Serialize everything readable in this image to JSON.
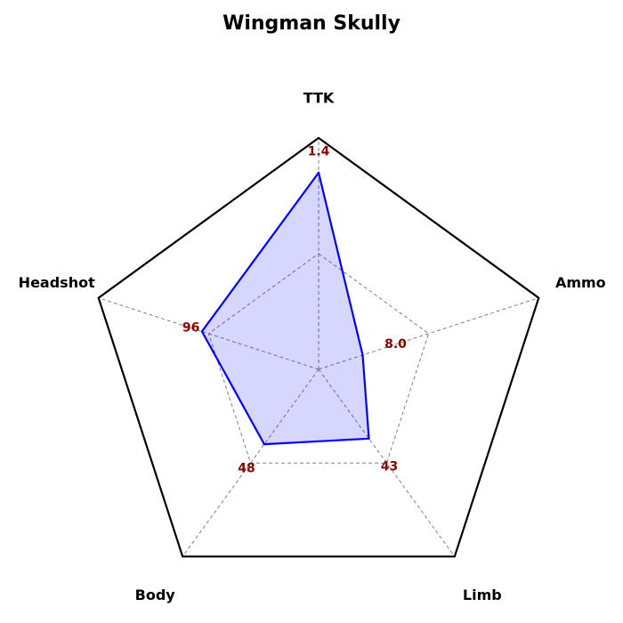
{
  "chart_data": {
    "type": "radar",
    "title": "Wingman Skully",
    "axes": [
      "TTK",
      "Ammo",
      "Limb",
      "Body",
      "Headshot"
    ],
    "value_labels": [
      "1.4",
      "8.0",
      "43",
      "48",
      "96"
    ],
    "series": [
      {
        "values": [
          0.85,
          0.2,
          0.37,
          0.4,
          0.53
        ]
      }
    ],
    "rmax": 1.0,
    "inner_ring": 0.5,
    "grid": true,
    "colors": {
      "series_line": "#0000ff",
      "series_fill": "#0000ff",
      "outer_frame": "#000000",
      "grid": "#808080",
      "value_label": "#8b0000"
    }
  }
}
